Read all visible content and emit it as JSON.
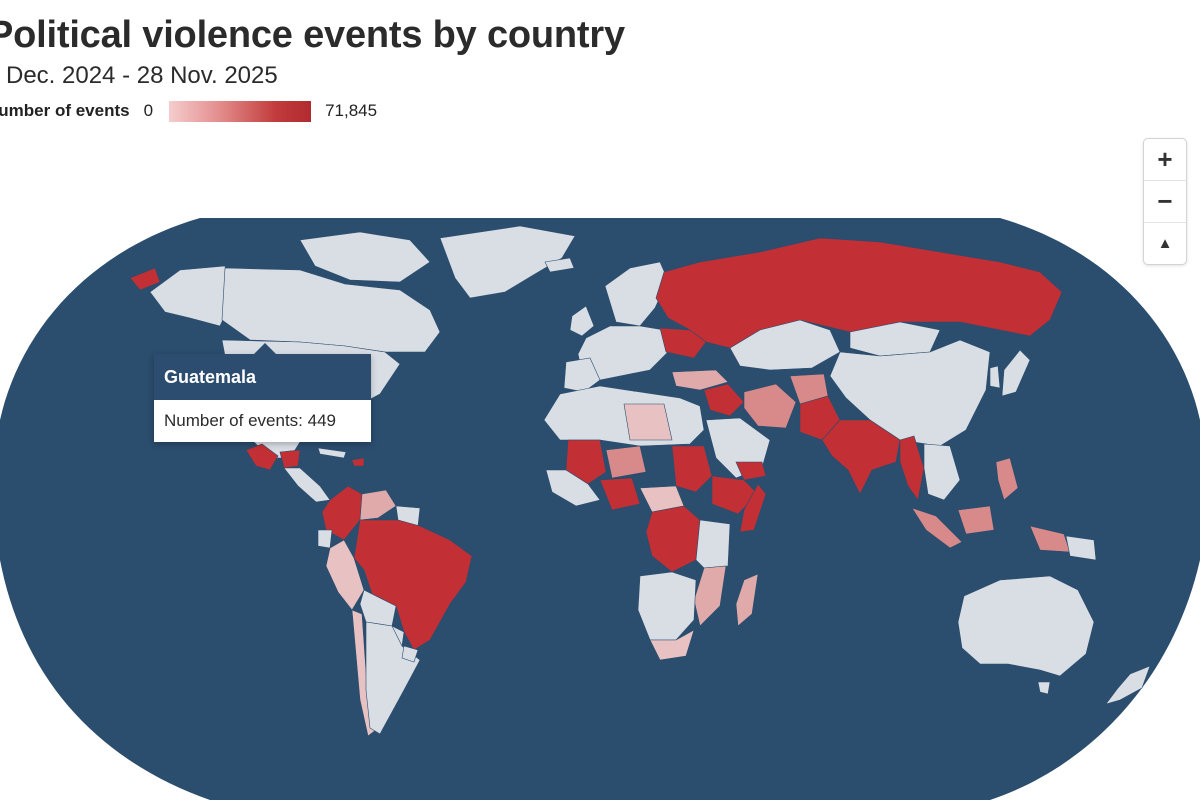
{
  "header": {
    "title": "Political violence events by country",
    "subtitle": "Dec. 2024 - 28 Nov. 2025"
  },
  "legend": {
    "title": "Number of events",
    "min_label": "0",
    "max_label": "71,845",
    "min_value": 0,
    "max_value": 71845,
    "color_low": "#f5cdcd",
    "color_high": "#b02a30"
  },
  "zoom": {
    "zoom_in": "+",
    "zoom_out": "−",
    "reset": "▲"
  },
  "tooltip": {
    "country": "Guatemala",
    "label": "Number of events: 449"
  },
  "colors": {
    "ocean": "#2b4d6e",
    "no_data_land": "#d9dde4",
    "high": "#c22f34",
    "medium": "#d88a8a",
    "low": "#ecc6c6"
  }
}
